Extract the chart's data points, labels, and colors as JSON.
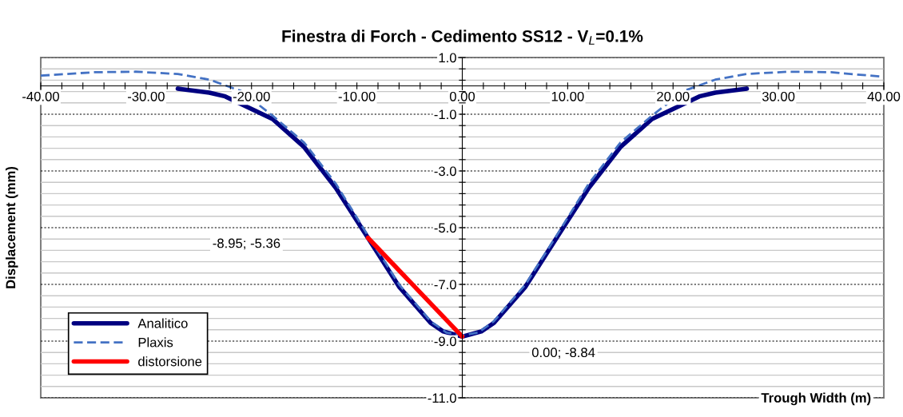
{
  "chart_data": {
    "type": "line",
    "title": "Finestra di Forch - Cedimento SS12 - V$_{L}$=0.1%",
    "xlabel": "Trough Width (m)",
    "ylabel": "Displacement (mm)",
    "series": [
      {
        "name": "Analitico",
        "color": "#000080",
        "line_style": "solid",
        "x": [
          -27,
          -24,
          -22.5,
          -18,
          -15,
          -12,
          -8.95,
          -6,
          -3,
          -1.8,
          0,
          1.8,
          3,
          6,
          8.95,
          12,
          15,
          18,
          22.5,
          24,
          27
        ],
        "values": [
          -0.1,
          -0.24,
          -0.37,
          -1.17,
          -2.16,
          -3.6,
          -5.36,
          -7.08,
          -8.36,
          -8.66,
          -8.84,
          -8.66,
          -8.36,
          -7.08,
          -5.36,
          -3.6,
          -2.16,
          -1.17,
          -0.37,
          -0.24,
          -0.1
        ]
      },
      {
        "name": "Plaxis",
        "color": "#4472c4",
        "line_style": "dashed",
        "x": [
          -40,
          -35,
          -31,
          -27,
          -24,
          -21,
          -18,
          -15,
          -12,
          -9,
          -6,
          -3,
          -1.5,
          0,
          1.5,
          3,
          6,
          9,
          12,
          15,
          18,
          21,
          24,
          27,
          31,
          35,
          40
        ],
        "values": [
          0.36,
          0.48,
          0.5,
          0.42,
          0.22,
          -0.18,
          -1.05,
          -2.0,
          -3.45,
          -5.25,
          -7.0,
          -8.3,
          -8.7,
          -8.8,
          -8.7,
          -8.3,
          -7.0,
          -5.25,
          -3.45,
          -2.0,
          -1.05,
          -0.18,
          0.22,
          0.42,
          0.5,
          0.48,
          0.32
        ]
      },
      {
        "name": "distorsione",
        "color": "#ff0000",
        "line_style": "solid",
        "x": [
          -8.95,
          0
        ],
        "values": [
          -5.36,
          -8.84
        ]
      }
    ],
    "xlim": [
      -40,
      40
    ],
    "ylim": [
      -11,
      1
    ],
    "xticks": [
      {
        "value": -40,
        "label": "-40.00"
      },
      {
        "value": -38,
        "label": null
      },
      {
        "value": -36,
        "label": null
      },
      {
        "value": -34,
        "label": null
      },
      {
        "value": -32,
        "label": null
      },
      {
        "value": -30,
        "label": "-30.00"
      },
      {
        "value": -28,
        "label": null
      },
      {
        "value": -26,
        "label": null
      },
      {
        "value": -24,
        "label": null
      },
      {
        "value": -22,
        "label": null
      },
      {
        "value": -20,
        "label": "-20.00"
      },
      {
        "value": -18,
        "label": null
      },
      {
        "value": -16,
        "label": null
      },
      {
        "value": -14,
        "label": null
      },
      {
        "value": -12,
        "label": null
      },
      {
        "value": -10,
        "label": "-10.00"
      },
      {
        "value": -8,
        "label": null
      },
      {
        "value": -6,
        "label": null
      },
      {
        "value": -4,
        "label": null
      },
      {
        "value": -2,
        "label": null
      },
      {
        "value": 0,
        "label": "0.00"
      },
      {
        "value": 2,
        "label": null
      },
      {
        "value": 4,
        "label": null
      },
      {
        "value": 6,
        "label": null
      },
      {
        "value": 8,
        "label": null
      },
      {
        "value": 10,
        "label": "10.00"
      },
      {
        "value": 12,
        "label": null
      },
      {
        "value": 14,
        "label": null
      },
      {
        "value": 16,
        "label": null
      },
      {
        "value": 18,
        "label": null
      },
      {
        "value": 20,
        "label": "20.00"
      },
      {
        "value": 22,
        "label": null
      },
      {
        "value": 24,
        "label": null
      },
      {
        "value": 26,
        "label": null
      },
      {
        "value": 28,
        "label": null
      },
      {
        "value": 30,
        "label": "30.00"
      },
      {
        "value": 32,
        "label": null
      },
      {
        "value": 34,
        "label": null
      },
      {
        "value": 36,
        "label": null
      },
      {
        "value": 38,
        "label": null
      },
      {
        "value": 40,
        "label": "40.00"
      }
    ],
    "yticks": [
      {
        "value": 1,
        "label": "1.0"
      },
      {
        "value": 0.6,
        "label": null
      },
      {
        "value": 0.2,
        "label": null
      },
      {
        "value": -0.2,
        "label": null
      },
      {
        "value": -0.6,
        "label": null
      },
      {
        "value": -1,
        "label": "-1.0"
      },
      {
        "value": -1.4,
        "label": null
      },
      {
        "value": -1.8,
        "label": null
      },
      {
        "value": -2.2,
        "label": null
      },
      {
        "value": -2.6,
        "label": null
      },
      {
        "value": -3,
        "label": "-3.0"
      },
      {
        "value": -3.4,
        "label": null
      },
      {
        "value": -3.8,
        "label": null
      },
      {
        "value": -4.2,
        "label": null
      },
      {
        "value": -4.6,
        "label": null
      },
      {
        "value": -5,
        "label": "-5.0"
      },
      {
        "value": -5.4,
        "label": null
      },
      {
        "value": -5.8,
        "label": null
      },
      {
        "value": -6.2,
        "label": null
      },
      {
        "value": -6.6,
        "label": null
      },
      {
        "value": -7,
        "label": "-7.0"
      },
      {
        "value": -7.4,
        "label": null
      },
      {
        "value": -7.8,
        "label": null
      },
      {
        "value": -8.2,
        "label": null
      },
      {
        "value": -8.6,
        "label": null
      },
      {
        "value": -9,
        "label": "-9.0"
      },
      {
        "value": -9.4,
        "label": null
      },
      {
        "value": -9.8,
        "label": null
      },
      {
        "value": -10.2,
        "label": null
      },
      {
        "value": -10.6,
        "label": null
      },
      {
        "value": -11,
        "label": "-11.0"
      }
    ],
    "annotations": [
      "-8.95; -5.36",
      "0.00; -8.84"
    ],
    "grid": "y",
    "legend": "bottom left",
    "marker": "none"
  }
}
